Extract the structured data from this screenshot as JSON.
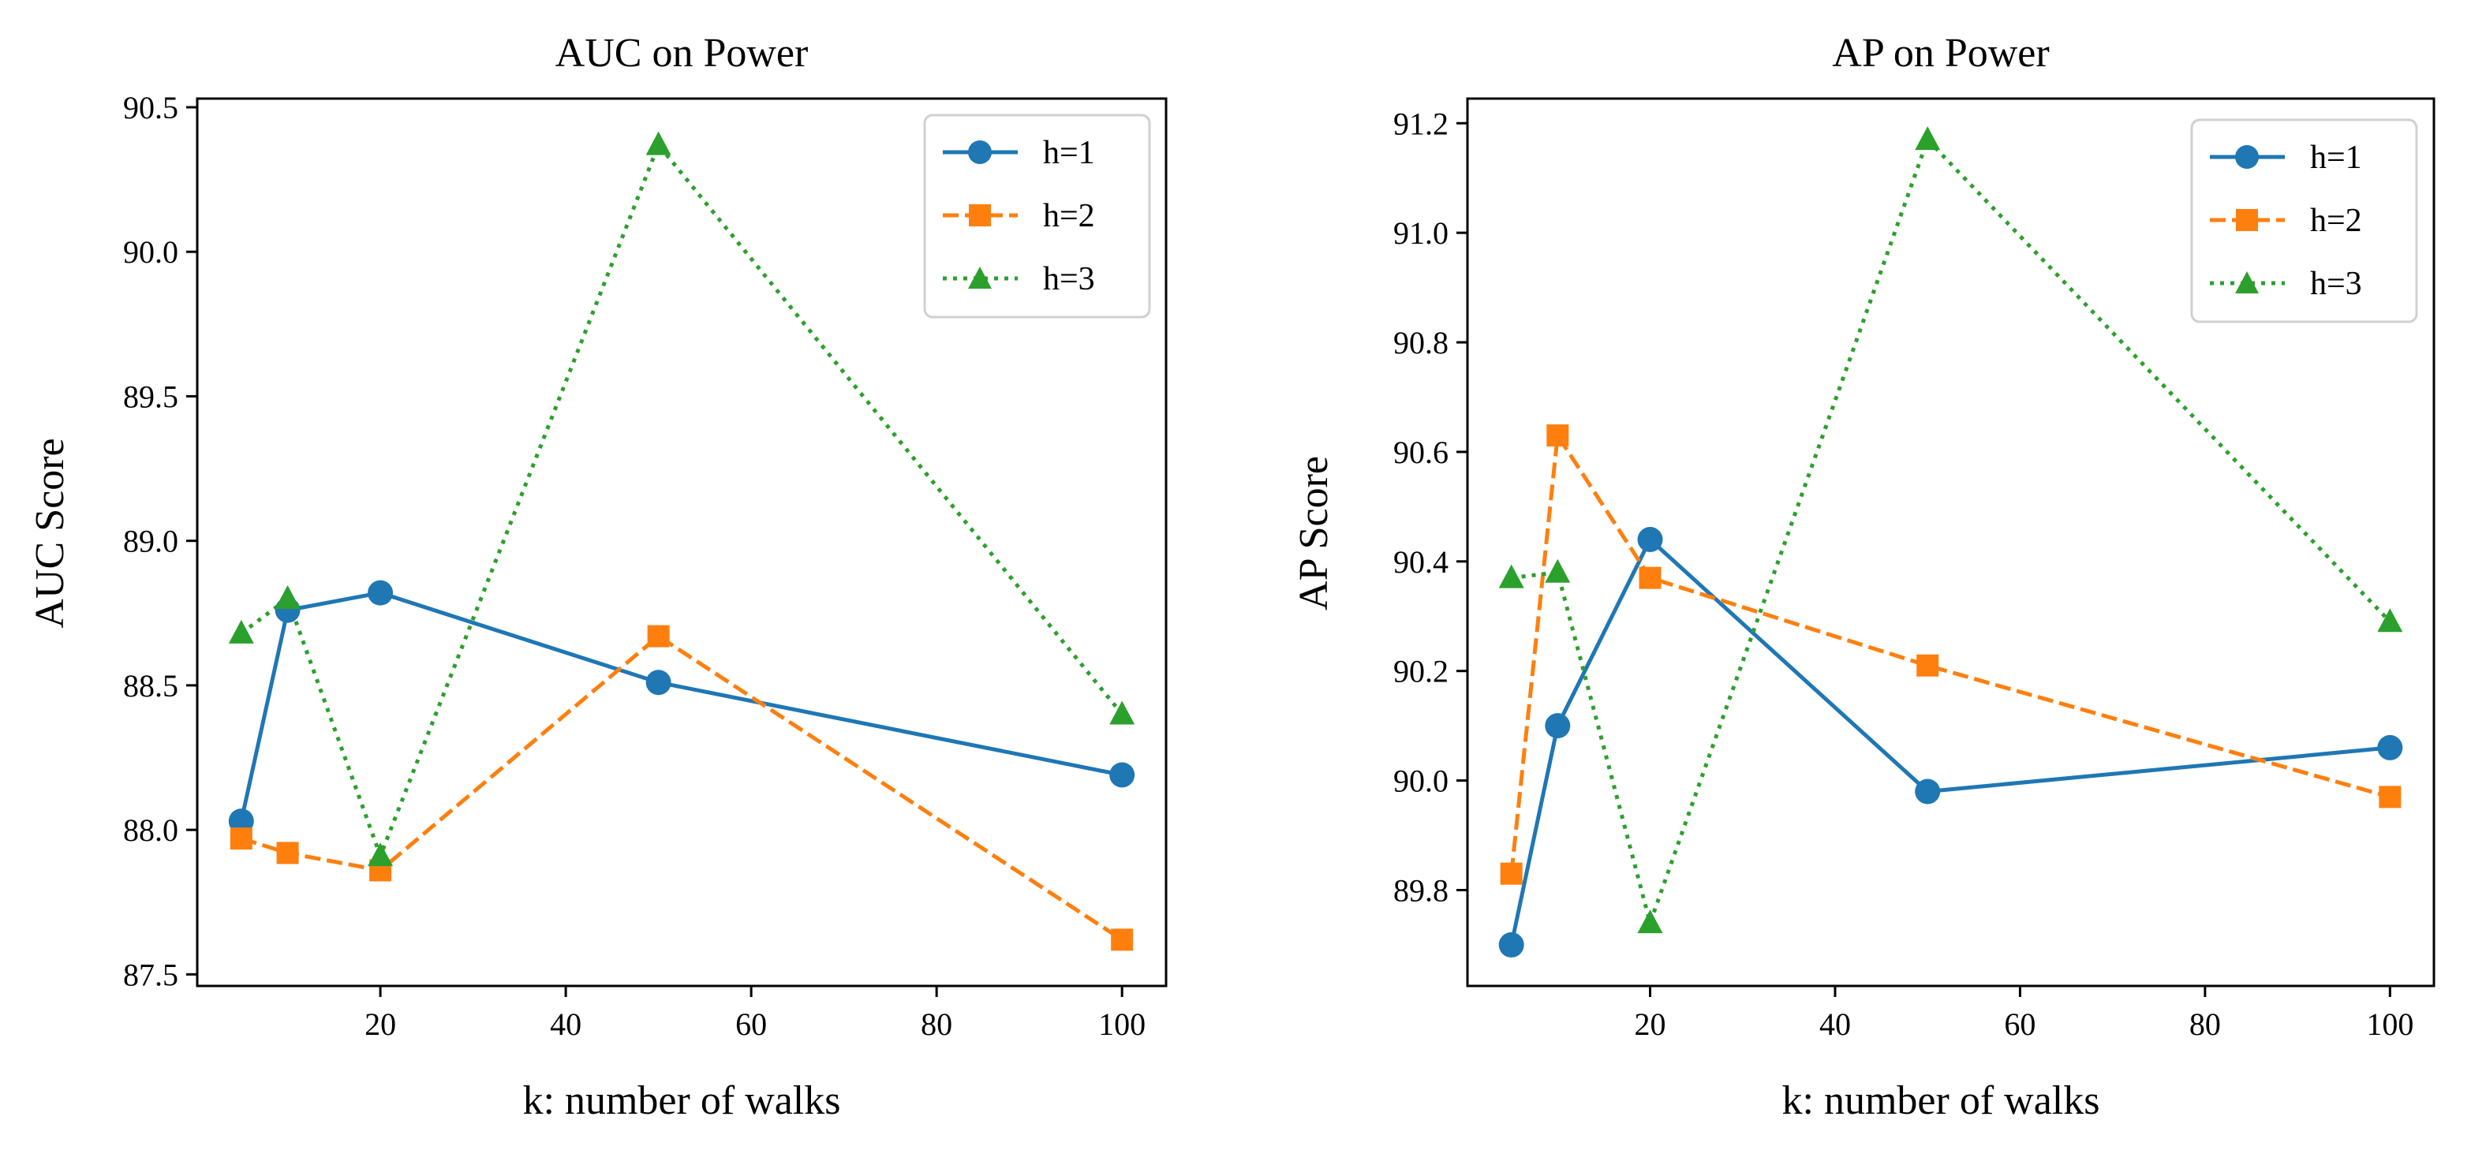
{
  "chart_data": [
    {
      "type": "line",
      "title": "AUC on Power",
      "xlabel": "k: number of walks",
      "ylabel": "AUC Score",
      "x": [
        5,
        10,
        20,
        50,
        100
      ],
      "xlim": [
        0.25,
        104.75
      ],
      "ylim": [
        87.46,
        90.53
      ],
      "xticks": [
        20,
        40,
        60,
        80,
        100
      ],
      "yticks": [
        87.5,
        88.0,
        88.5,
        89.0,
        89.5,
        90.0,
        90.5
      ],
      "xtick_labels": [
        "20",
        "40",
        "60",
        "80",
        "100"
      ],
      "ytick_labels": [
        "87.5",
        "88.0",
        "88.5",
        "89.0",
        "89.5",
        "90.0",
        "90.5"
      ],
      "grid": false,
      "legend_position": "top-right",
      "series": [
        {
          "name": "h=1",
          "color": "#1f77b4",
          "dash": "solid",
          "marker": "circle",
          "values": [
            88.03,
            88.76,
            88.82,
            88.51,
            88.19
          ]
        },
        {
          "name": "h=2",
          "color": "#ff7f0e",
          "dash": "dashed",
          "marker": "square",
          "values": [
            87.97,
            87.92,
            87.86,
            88.67,
            87.62
          ]
        },
        {
          "name": "h=3",
          "color": "#2ca02c",
          "dash": "dotted",
          "marker": "triangle",
          "values": [
            88.68,
            88.8,
            87.91,
            90.37,
            88.4
          ]
        }
      ]
    },
    {
      "type": "line",
      "title": "AP on Power",
      "xlabel": "k: number of walks",
      "ylabel": "AP Score",
      "x": [
        5,
        10,
        20,
        50,
        100
      ],
      "xlim": [
        0.25,
        104.75
      ],
      "ylim": [
        89.625,
        91.245
      ],
      "xticks": [
        20,
        40,
        60,
        80,
        100
      ],
      "yticks": [
        89.8,
        90.0,
        90.2,
        90.4,
        90.6,
        90.8,
        91.0,
        91.2
      ],
      "xtick_labels": [
        "20",
        "40",
        "60",
        "80",
        "100"
      ],
      "ytick_labels": [
        "89.8",
        "90.0",
        "90.2",
        "90.4",
        "90.6",
        "90.8",
        "91.0",
        "91.2"
      ],
      "grid": false,
      "legend_position": "top-right",
      "series": [
        {
          "name": "h=1",
          "color": "#1f77b4",
          "dash": "solid",
          "marker": "circle",
          "values": [
            89.7,
            90.1,
            90.44,
            89.98,
            90.06
          ]
        },
        {
          "name": "h=2",
          "color": "#ff7f0e",
          "dash": "dashed",
          "marker": "square",
          "values": [
            89.83,
            90.63,
            90.37,
            90.21,
            89.97
          ]
        },
        {
          "name": "h=3",
          "color": "#2ca02c",
          "dash": "dotted",
          "marker": "triangle",
          "values": [
            90.37,
            90.38,
            89.74,
            91.17,
            90.29
          ]
        }
      ]
    }
  ]
}
